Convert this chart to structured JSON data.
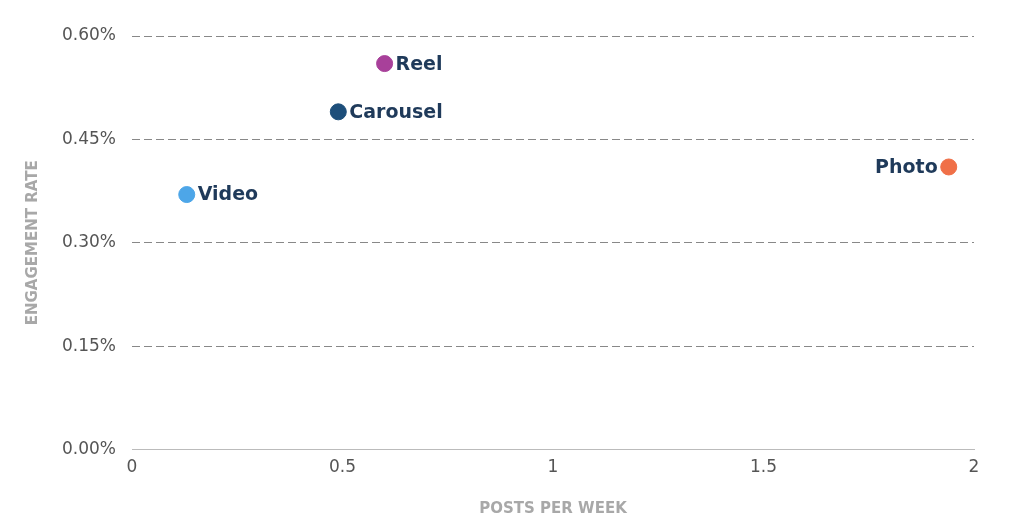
{
  "chart_data": {
    "type": "scatter",
    "xlabel": "POSTS PER WEEK",
    "ylabel": "ENGAGEMENT RATE",
    "series": [
      {
        "name": "Video",
        "color": "#4da6e8",
        "x": [
          0.13
        ],
        "values": [
          0.37
        ]
      },
      {
        "name": "Carousel",
        "color": "#1d4e7a",
        "x": [
          0.49
        ],
        "values": [
          0.49
        ]
      },
      {
        "name": "Reel",
        "color": "#a8409a",
        "x": [
          0.6
        ],
        "values": [
          0.56
        ]
      },
      {
        "name": "Photo",
        "color": "#f07048",
        "x": [
          1.94
        ],
        "values": [
          0.41
        ]
      }
    ],
    "xlim": [
      0,
      2
    ],
    "xticks": [
      0,
      0.5,
      1,
      1.5,
      2
    ],
    "ylim": [
      0,
      0.6
    ],
    "yticks": [
      {
        "value": 0,
        "label": "0.00%"
      },
      {
        "value": 0.15,
        "label": "0.15%"
      },
      {
        "value": 0.3,
        "label": "0.30%"
      },
      {
        "value": 0.45,
        "label": "0.45%"
      },
      {
        "value": 0.6,
        "label": "0.60%"
      }
    ],
    "grid": "y",
    "legend": false,
    "marker": "circle"
  }
}
